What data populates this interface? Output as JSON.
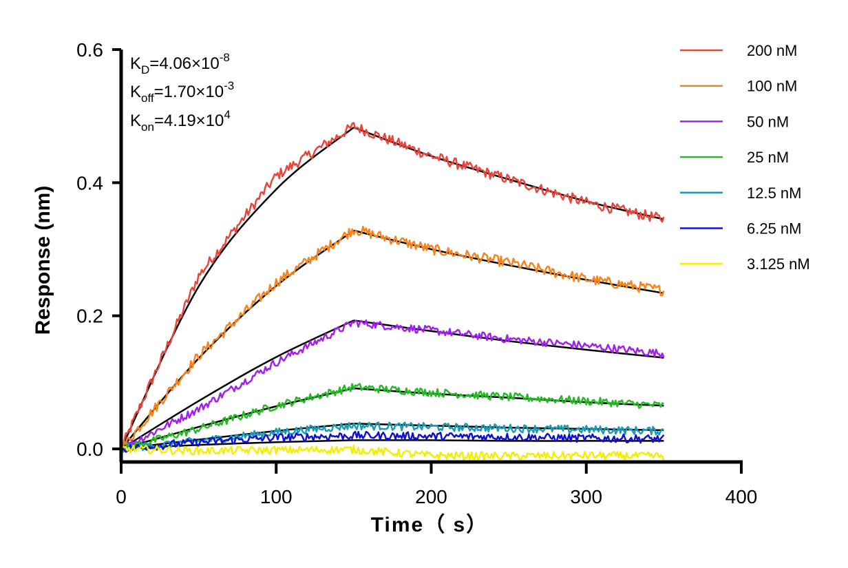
{
  "chart_data": {
    "type": "line",
    "xlabel": "Time（ s）",
    "ylabel": "Response (nm)",
    "xlim": [
      0,
      400
    ],
    "ylim": [
      0,
      0.6
    ],
    "xticks": [
      "0",
      "100",
      "200",
      "300",
      "400"
    ],
    "yticks": [
      "0.0",
      "0.2",
      "0.4",
      "0.6"
    ],
    "grid": false,
    "legend_position": "top-right",
    "association_end_s": 150,
    "end_s": 350,
    "annotations": {
      "kd": {
        "base": "K",
        "sub": "D",
        "value": "=4.06×10",
        "exp": "-8"
      },
      "koff": {
        "base": "K",
        "sub": "off",
        "value": "=1.70×10",
        "exp": "-3"
      },
      "kon": {
        "base": "K",
        "sub": "on",
        "value": "=4.19×10",
        "exp": "4"
      }
    },
    "fit_color": "#000000",
    "series": [
      {
        "name": "200 nM",
        "color": "#e8453c",
        "x": [
          0,
          50,
          100,
          150,
          200,
          250,
          300,
          350
        ],
        "y": [
          0.0,
          0.26,
          0.41,
          0.485,
          0.44,
          0.405,
          0.37,
          0.345
        ],
        "fit": [
          0.0,
          0.244,
          0.39,
          0.483,
          0.44,
          0.405,
          0.372,
          0.345
        ]
      },
      {
        "name": "100 nM",
        "color": "#f5841f",
        "x": [
          0,
          50,
          100,
          150,
          200,
          250,
          300,
          350
        ],
        "y": [
          0.0,
          0.14,
          0.25,
          0.33,
          0.3,
          0.28,
          0.255,
          0.238
        ],
        "fit": [
          0.0,
          0.136,
          0.245,
          0.328,
          0.3,
          0.276,
          0.254,
          0.234
        ]
      },
      {
        "name": "50 nM",
        "color": "#a020f0",
        "x": [
          0,
          50,
          100,
          150,
          200,
          250,
          300,
          350
        ],
        "y": [
          0.0,
          0.06,
          0.13,
          0.19,
          0.178,
          0.165,
          0.155,
          0.143
        ],
        "fit": [
          0.0,
          0.072,
          0.138,
          0.193,
          0.177,
          0.162,
          0.149,
          0.137
        ]
      },
      {
        "name": "25 nM",
        "color": "#22bb22",
        "x": [
          0,
          50,
          100,
          150,
          200,
          250,
          300,
          350
        ],
        "y": [
          0.0,
          0.03,
          0.065,
          0.093,
          0.085,
          0.078,
          0.072,
          0.065
        ],
        "fit": [
          0.0,
          0.033,
          0.064,
          0.091,
          0.083,
          0.077,
          0.07,
          0.065
        ]
      },
      {
        "name": "12.5 nM",
        "color": "#1a9bb5",
        "x": [
          0,
          50,
          100,
          150,
          200,
          250,
          300,
          350
        ],
        "y": [
          0.0,
          0.012,
          0.025,
          0.035,
          0.033,
          0.031,
          0.029,
          0.027
        ],
        "fit": [
          0.0,
          0.014,
          0.027,
          0.038,
          0.035,
          0.032,
          0.03,
          0.028
        ]
      },
      {
        "name": "6.25 nM",
        "color": "#1010d0",
        "x": [
          0,
          50,
          100,
          150,
          200,
          250,
          300,
          350
        ],
        "y": [
          0.0,
          0.01,
          0.017,
          0.02,
          0.019,
          0.018,
          0.016,
          0.015
        ],
        "fit": [
          0.0,
          0.006,
          0.01,
          0.013,
          0.013,
          0.012,
          0.012,
          0.012
        ]
      },
      {
        "name": "3.125 nM",
        "color": "#f2ee0a",
        "x": [
          0,
          50,
          100,
          150,
          200,
          250,
          300,
          350
        ],
        "y": [
          0.0,
          -0.003,
          -0.002,
          -0.001,
          -0.01,
          -0.011,
          -0.01,
          -0.011
        ],
        "fit": []
      }
    ]
  }
}
